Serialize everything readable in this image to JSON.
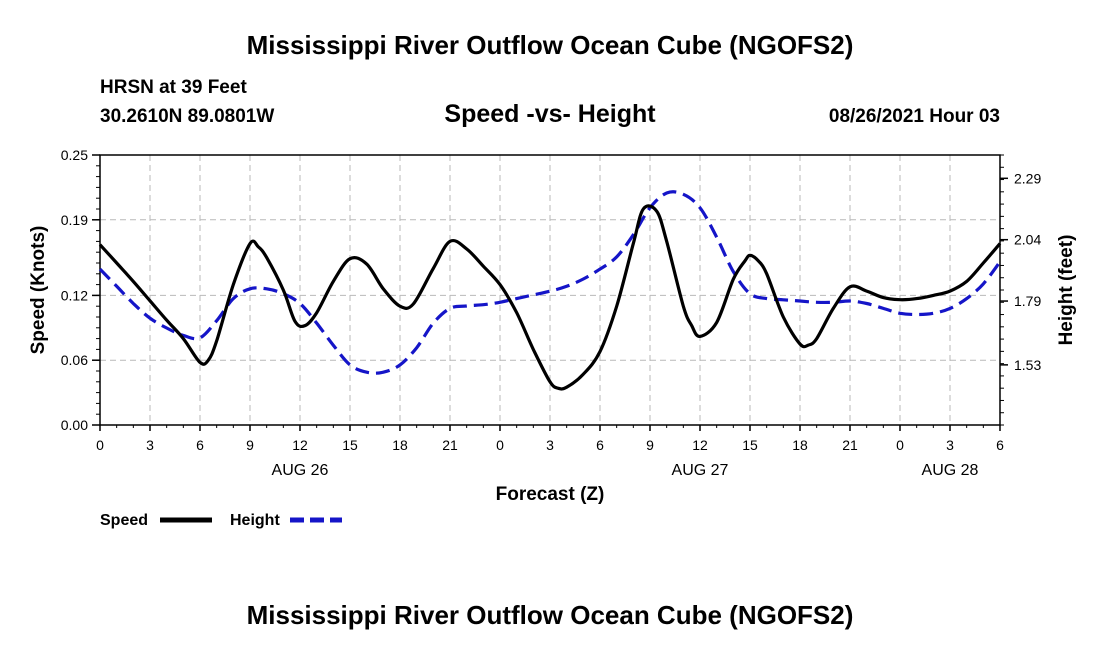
{
  "page": {
    "title_top": "Mississippi River Outflow Ocean Cube (NGOFS2)",
    "title_bottom": "Mississippi River Outflow Ocean Cube (NGOFS2)",
    "station": "HRSN at 39 Feet",
    "coords": "30.2610N  89.0801W",
    "subtitle": "Speed -vs- Height",
    "datetime": "08/26/2021 Hour 03"
  },
  "chart_data": {
    "type": "line",
    "title": "Speed -vs- Height",
    "xlabel": "Forecast (Z)",
    "ylabel_left": "Speed (Knots)",
    "ylabel_right": "Height (feet)",
    "x_range_hours": [
      0,
      54
    ],
    "x_ticks": [
      {
        "h": 0,
        "label": "0"
      },
      {
        "h": 3,
        "label": "3"
      },
      {
        "h": 6,
        "label": "6"
      },
      {
        "h": 9,
        "label": "9"
      },
      {
        "h": 12,
        "label": "12"
      },
      {
        "h": 15,
        "label": "15"
      },
      {
        "h": 18,
        "label": "18"
      },
      {
        "h": 21,
        "label": "21"
      },
      {
        "h": 24,
        "label": "0"
      },
      {
        "h": 27,
        "label": "3"
      },
      {
        "h": 30,
        "label": "6"
      },
      {
        "h": 33,
        "label": "9"
      },
      {
        "h": 36,
        "label": "12"
      },
      {
        "h": 39,
        "label": "15"
      },
      {
        "h": 42,
        "label": "18"
      },
      {
        "h": 45,
        "label": "21"
      },
      {
        "h": 48,
        "label": "0"
      },
      {
        "h": 51,
        "label": "3"
      },
      {
        "h": 54,
        "label": "6"
      }
    ],
    "date_labels": [
      {
        "h": 12,
        "label": "AUG 26"
      },
      {
        "h": 36,
        "label": "AUG 27"
      },
      {
        "h": 51,
        "label": "AUG 28"
      }
    ],
    "y_left": {
      "range": [
        0,
        0.25
      ],
      "ticks": [
        0.0,
        0.06,
        0.12,
        0.19,
        0.25
      ],
      "tick_labels": [
        "0.00",
        "0.06",
        "0.12",
        "0.19",
        "0.25"
      ]
    },
    "y_right": {
      "range": [
        1.285,
        2.385
      ],
      "ticks": [
        1.53,
        1.79,
        2.04,
        2.29
      ],
      "tick_labels": [
        "1.53",
        "1.79",
        "2.04",
        "2.29"
      ]
    },
    "legend": [
      {
        "name": "Speed",
        "color": "#000000",
        "dashed": false
      },
      {
        "name": "Height",
        "color": "#1515c8",
        "dashed": true
      }
    ],
    "series": [
      {
        "name": "Speed",
        "axis": "left",
        "color": "#000000",
        "points": [
          [
            0,
            0.167
          ],
          [
            1,
            0.15
          ],
          [
            2,
            0.133
          ],
          [
            3,
            0.115
          ],
          [
            4,
            0.097
          ],
          [
            5,
            0.08
          ],
          [
            6,
            0.058
          ],
          [
            6.5,
            0.06
          ],
          [
            7,
            0.078
          ],
          [
            8,
            0.13
          ],
          [
            9,
            0.168
          ],
          [
            9.5,
            0.165
          ],
          [
            10,
            0.155
          ],
          [
            11,
            0.125
          ],
          [
            11.7,
            0.096
          ],
          [
            12.3,
            0.092
          ],
          [
            13,
            0.104
          ],
          [
            14,
            0.133
          ],
          [
            15,
            0.154
          ],
          [
            16,
            0.149
          ],
          [
            17,
            0.126
          ],
          [
            18,
            0.11
          ],
          [
            18.8,
            0.112
          ],
          [
            20,
            0.145
          ],
          [
            21,
            0.17
          ],
          [
            22,
            0.163
          ],
          [
            23,
            0.147
          ],
          [
            24,
            0.13
          ],
          [
            25,
            0.104
          ],
          [
            26,
            0.07
          ],
          [
            27,
            0.04
          ],
          [
            27.5,
            0.034
          ],
          [
            28,
            0.035
          ],
          [
            29,
            0.047
          ],
          [
            30,
            0.068
          ],
          [
            31,
            0.11
          ],
          [
            32,
            0.168
          ],
          [
            32.6,
            0.2
          ],
          [
            33.4,
            0.198
          ],
          [
            34,
            0.17
          ],
          [
            35,
            0.11
          ],
          [
            35.5,
            0.092
          ],
          [
            36,
            0.082
          ],
          [
            37,
            0.095
          ],
          [
            38,
            0.135
          ],
          [
            38.7,
            0.152
          ],
          [
            39,
            0.157
          ],
          [
            39.5,
            0.152
          ],
          [
            40,
            0.14
          ],
          [
            41,
            0.1
          ],
          [
            42,
            0.075
          ],
          [
            42.5,
            0.074
          ],
          [
            43,
            0.08
          ],
          [
            44,
            0.108
          ],
          [
            45,
            0.128
          ],
          [
            46,
            0.124
          ],
          [
            47,
            0.118
          ],
          [
            48,
            0.116
          ],
          [
            49,
            0.117
          ],
          [
            50,
            0.12
          ],
          [
            51,
            0.124
          ],
          [
            52,
            0.133
          ],
          [
            53,
            0.15
          ],
          [
            54,
            0.168
          ]
        ]
      },
      {
        "name": "Height",
        "axis": "right",
        "color": "#1515c8",
        "points": [
          [
            0,
            1.92
          ],
          [
            1,
            1.85
          ],
          [
            2,
            1.78
          ],
          [
            3,
            1.72
          ],
          [
            4,
            1.68
          ],
          [
            5,
            1.65
          ],
          [
            6,
            1.64
          ],
          [
            7,
            1.71
          ],
          [
            8,
            1.8
          ],
          [
            9,
            1.84
          ],
          [
            10,
            1.84
          ],
          [
            11,
            1.82
          ],
          [
            12,
            1.78
          ],
          [
            13,
            1.7
          ],
          [
            14,
            1.61
          ],
          [
            15,
            1.53
          ],
          [
            16,
            1.5
          ],
          [
            17,
            1.5
          ],
          [
            18,
            1.53
          ],
          [
            19,
            1.6
          ],
          [
            20,
            1.7
          ],
          [
            21,
            1.76
          ],
          [
            22,
            1.77
          ],
          [
            23,
            1.775
          ],
          [
            24,
            1.785
          ],
          [
            25,
            1.8
          ],
          [
            26,
            1.815
          ],
          [
            27,
            1.83
          ],
          [
            28,
            1.85
          ],
          [
            29,
            1.88
          ],
          [
            30,
            1.92
          ],
          [
            31,
            1.97
          ],
          [
            32,
            2.06
          ],
          [
            33,
            2.17
          ],
          [
            34,
            2.23
          ],
          [
            35,
            2.225
          ],
          [
            36,
            2.17
          ],
          [
            37,
            2.05
          ],
          [
            38,
            1.91
          ],
          [
            39,
            1.82
          ],
          [
            40,
            1.8
          ],
          [
            41,
            1.795
          ],
          [
            42,
            1.79
          ],
          [
            43,
            1.785
          ],
          [
            44,
            1.785
          ],
          [
            45,
            1.79
          ],
          [
            46,
            1.78
          ],
          [
            47,
            1.76
          ],
          [
            48,
            1.74
          ],
          [
            49,
            1.735
          ],
          [
            50,
            1.74
          ],
          [
            51,
            1.76
          ],
          [
            52,
            1.8
          ],
          [
            53,
            1.86
          ],
          [
            54,
            1.95
          ]
        ]
      }
    ]
  }
}
